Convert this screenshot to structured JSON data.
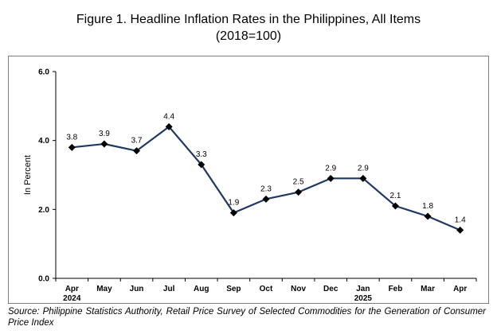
{
  "title": {
    "line1": "Figure 1. Headline Inflation Rates in the Philippines, All Items",
    "line2": "(2018=100)"
  },
  "chart_data": {
    "type": "line",
    "categories": [
      "Apr",
      "May",
      "Jun",
      "Jul",
      "Aug",
      "Sep",
      "Oct",
      "Nov",
      "Dec",
      "Jan",
      "Feb",
      "Mar",
      "Apr"
    ],
    "category_years": [
      "2024",
      "",
      "",
      "",
      "",
      "",
      "",
      "",
      "",
      "2025",
      "",
      "",
      ""
    ],
    "series": [
      {
        "values": [
          3.8,
          3.9,
          3.7,
          4.4,
          3.3,
          1.9,
          2.3,
          2.5,
          2.9,
          2.9,
          2.1,
          1.8,
          1.4
        ]
      }
    ],
    "data_labels": [
      "3.8",
      "3.9",
      "3.7",
      "4.4",
      "3.3",
      "1.9",
      "2.3",
      "2.5",
      "2.9",
      "2.9",
      "2.1",
      "1.8",
      "1.4"
    ],
    "ylabel": "In Percent",
    "xlabel": "",
    "ylim": [
      0,
      6
    ],
    "y_ticks": [
      "0.0",
      "2.0",
      "4.0",
      "6.0"
    ],
    "y_tick_values": [
      0,
      2,
      4,
      6
    ],
    "grid": false,
    "line_color": "#1f3864",
    "marker": "diamond"
  },
  "source": {
    "label": "Source:",
    "text": "Philippine Statistics Authority, Retail Price Survey of Selected Commodities for the Generation of Consumer Price Index"
  }
}
